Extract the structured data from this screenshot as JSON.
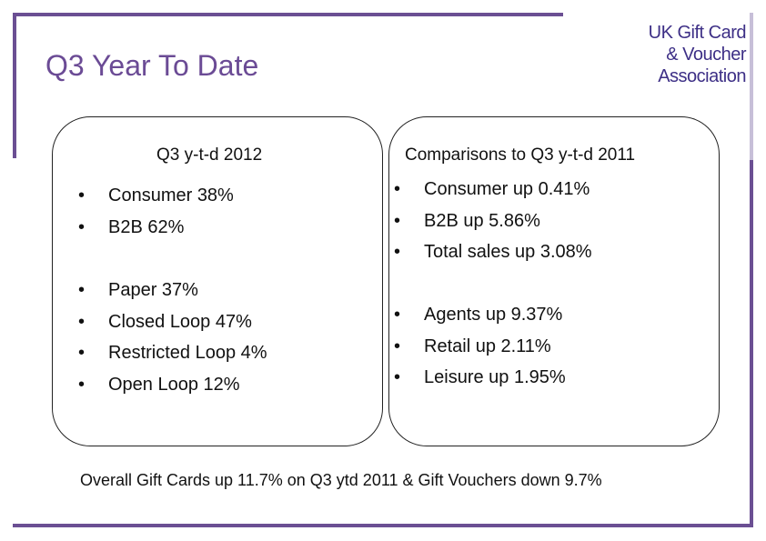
{
  "slide": {
    "title": "Q3 Year To Date",
    "logo": {
      "line1": "UK Gift Card",
      "line2": "& Voucher",
      "line3": "Association"
    },
    "left_panel": {
      "heading": "Q3 y-t-d  2012",
      "group1": [
        "Consumer 38%",
        "B2B 62%"
      ],
      "group2": [
        "Paper 37%",
        "Closed Loop 47%",
        "Restricted Loop 4%",
        "Open Loop 12%"
      ]
    },
    "right_panel": {
      "heading": "Comparisons to Q3 y-t-d 2011",
      "group1": [
        "Consumer up 0.41%",
        "B2B up 5.86%",
        "Total sales up 3.08%"
      ],
      "group2": [
        "Agents up 9.37%",
        "Retail up 2.11%",
        "Leisure up 1.95%"
      ]
    },
    "footer": "Overall Gift Cards up 11.7% on Q3 ytd 2011 & Gift Vouchers down 9.7%"
  },
  "colors": {
    "accent": "#6b4f93",
    "title": "#6b4b95",
    "logo": "#3d2f86"
  }
}
